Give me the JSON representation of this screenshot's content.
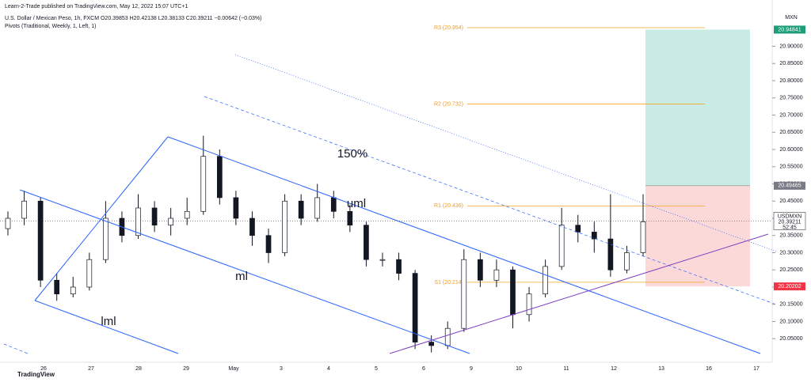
{
  "chart_data": {
    "type": "candlestick",
    "publisher": "Learn-2-Trade published on TradingView.com, May 12, 2022 15:07 UTC+1",
    "title": "U.S. Dollar / Mexican Peso, 1h, FXCM  O20.39853 H20.42138 L20.38133 C20.39211 −0.00642 (−0.03%)",
    "indicator": "Pivots (Traditional, Weekly, 1, Left, 1)",
    "currency": "MXN",
    "brand": "TradingView",
    "categories": [
      "26",
      "27",
      "28",
      "29",
      "May",
      "3",
      "4",
      "5",
      "6",
      "9",
      "10",
      "11",
      "12",
      "13",
      "16",
      "17"
    ],
    "open": [
      20.37,
      20.4,
      20.45,
      20.22,
      20.18,
      20.2,
      20.28,
      20.4,
      20.35,
      20.43,
      20.38,
      20.4,
      20.42,
      20.58,
      20.46,
      20.4,
      20.35,
      20.3,
      20.45,
      20.4,
      20.46,
      20.42,
      20.38,
      20.28,
      20.28,
      20.24,
      20.04,
      20.03,
      20.08,
      20.28,
      20.22,
      20.25,
      20.12,
      20.18,
      20.26,
      20.38,
      20.36,
      20.34,
      20.25,
      20.3
    ],
    "high": [
      20.42,
      20.48,
      20.46,
      20.24,
      20.23,
      20.3,
      20.45,
      20.42,
      20.47,
      20.45,
      20.43,
      20.46,
      20.64,
      20.6,
      20.48,
      20.42,
      20.37,
      20.47,
      20.47,
      20.5,
      20.48,
      20.44,
      20.39,
      20.3,
      20.3,
      20.25,
      20.06,
      20.1,
      20.31,
      20.3,
      20.28,
      20.26,
      20.2,
      20.28,
      20.43,
      20.41,
      20.39,
      20.47,
      20.32,
      20.47
    ],
    "low": [
      20.35,
      20.38,
      20.2,
      20.16,
      20.17,
      20.19,
      20.27,
      20.33,
      20.34,
      20.36,
      20.35,
      20.38,
      20.41,
      20.44,
      20.38,
      20.32,
      20.27,
      20.29,
      20.38,
      20.39,
      20.4,
      20.36,
      20.26,
      20.26,
      20.22,
      20.02,
      20.01,
      20.02,
      20.07,
      20.2,
      20.2,
      20.08,
      20.1,
      20.17,
      20.25,
      20.33,
      20.3,
      20.23,
      20.24,
      20.29
    ],
    "close": [
      20.4,
      20.45,
      20.22,
      20.18,
      20.2,
      20.28,
      20.4,
      20.35,
      20.43,
      20.38,
      20.4,
      20.42,
      20.58,
      20.46,
      20.4,
      20.35,
      20.3,
      20.45,
      20.4,
      20.46,
      20.42,
      20.38,
      20.28,
      20.28,
      20.24,
      20.04,
      20.03,
      20.08,
      20.28,
      20.22,
      20.25,
      20.12,
      20.18,
      20.26,
      20.38,
      20.36,
      20.34,
      20.25,
      20.3,
      20.39
    ],
    "ylim": [
      20.0,
      21.0
    ],
    "yticks": [
      {
        "value": 20.05,
        "label": "20.05000"
      },
      {
        "value": 20.1,
        "label": "20.10000"
      },
      {
        "value": 20.15,
        "label": "20.15000"
      },
      {
        "value": 20.2,
        "label": "20.20000"
      },
      {
        "value": 20.25,
        "label": "20.25000"
      },
      {
        "value": 20.3,
        "label": "20.30000"
      },
      {
        "value": 20.35,
        "label": "20.35000"
      },
      {
        "value": 20.4,
        "label": "20.40000"
      },
      {
        "value": 20.45,
        "label": "20.45000"
      },
      {
        "value": 20.5,
        "label": "20.50000"
      },
      {
        "value": 20.55,
        "label": "20.55000"
      },
      {
        "value": 20.6,
        "label": "20.60000"
      },
      {
        "value": 20.65,
        "label": "20.65000"
      },
      {
        "value": 20.7,
        "label": "20.70000"
      },
      {
        "value": 20.75,
        "label": "20.75000"
      },
      {
        "value": 20.8,
        "label": "20.80000"
      },
      {
        "value": 20.85,
        "label": "20.85000"
      },
      {
        "value": 20.9,
        "label": "20.90000"
      }
    ],
    "pivots": [
      {
        "label": "R3 (20.954)",
        "value": 20.954
      },
      {
        "label": "R2 (20.732)",
        "value": 20.732
      },
      {
        "label": "R1 (20.436)",
        "value": 20.436
      },
      {
        "label": "S1 (20.214)",
        "value": 20.214
      }
    ],
    "position": {
      "target": 20.94841,
      "entry": 20.49465,
      "stop": 20.20202,
      "target_color": "#c8ebe5",
      "stop_color": "#fcd9d9"
    },
    "last_price": {
      "value": 20.39211,
      "symbol": "USDMXN",
      "countdown": "52:45"
    },
    "annotations": [
      "150%",
      "uml",
      "ml",
      "lml"
    ]
  }
}
